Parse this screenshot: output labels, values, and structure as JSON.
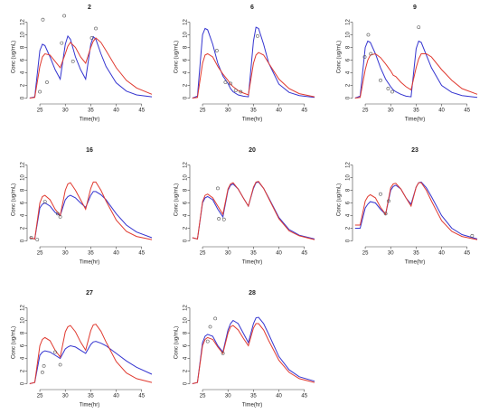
{
  "chart_data": [
    {
      "type": "line",
      "title": "2",
      "xlabel": "Time(hr)",
      "ylabel": "Conc (ug/mL)",
      "xlim": [
        22.5,
        47
      ],
      "ylim": [
        -0.5,
        13.5
      ],
      "xticks": [
        25,
        30,
        35,
        40,
        45
      ],
      "yticks": [
        0,
        2,
        4,
        6,
        8,
        10,
        12
      ],
      "x": [
        23,
        24,
        25,
        25.5,
        26,
        27,
        28,
        29,
        30,
        30.5,
        31,
        32,
        33,
        34,
        35,
        35.5,
        36,
        37,
        38,
        40,
        42,
        44,
        47
      ],
      "series": [
        {
          "color": "#3535d0",
          "values": [
            0,
            0.2,
            7.5,
            8.5,
            8.3,
            6.5,
            4.5,
            3,
            8.5,
            9.8,
            9.3,
            6.5,
            4.5,
            3,
            8.5,
            9.7,
            9.3,
            7,
            5,
            2.4,
            1.1,
            0.5,
            0.2
          ]
        },
        {
          "color": "#e03a30",
          "values": [
            0,
            0.1,
            5,
            6.5,
            7,
            6.8,
            5.8,
            4.8,
            7,
            8.2,
            8.8,
            8,
            6.5,
            5.5,
            8,
            9,
            9.5,
            8.8,
            7.5,
            4.8,
            2.8,
            1.6,
            0.6
          ]
        }
      ],
      "points": {
        "color": "#555555",
        "x": [
          25,
          25.6,
          26.4,
          29.3,
          29.8,
          31.5,
          35.2,
          36
        ],
        "values": [
          1,
          12.4,
          2.5,
          8.7,
          13,
          5.8,
          9.5,
          11
        ]
      }
    },
    {
      "type": "line",
      "title": "6",
      "xlabel": "Time(hr)",
      "ylabel": "Conc (ug/mL)",
      "xlim": [
        22.5,
        47
      ],
      "ylim": [
        -0.5,
        13.5
      ],
      "xticks": [
        25,
        30,
        35,
        40,
        45
      ],
      "yticks": [
        0,
        2,
        4,
        6,
        8,
        10,
        12
      ],
      "x": [
        23,
        24,
        25,
        25.5,
        26,
        27,
        28,
        29,
        30,
        30.5,
        31,
        32,
        33,
        34,
        35,
        35.5,
        36,
        37,
        38,
        40,
        42,
        44,
        47
      ],
      "series": [
        {
          "color": "#3535d0",
          "values": [
            0,
            0.3,
            10,
            11,
            10.8,
            8.5,
            5.5,
            3.5,
            2.3,
            1.5,
            1,
            0.5,
            0.3,
            0.2,
            9,
            11.2,
            11,
            8.5,
            5.5,
            2.2,
            0.9,
            0.4,
            0.1
          ]
        },
        {
          "color": "#e03a30",
          "values": [
            0,
            0.1,
            5.5,
            6.8,
            7,
            6.5,
            5,
            3.8,
            2.8,
            2.2,
            1.8,
            1.2,
            0.8,
            0.5,
            5.5,
            6.8,
            7.2,
            6.8,
            5.5,
            3,
            1.5,
            0.7,
            0.2
          ]
        }
      ],
      "points": {
        "color": "#555555",
        "x": [
          27.8,
          29.5,
          30.5,
          31.5,
          32.5,
          35.8
        ],
        "values": [
          7.5,
          2.5,
          2.3,
          1.2,
          1,
          9.8
        ]
      }
    },
    {
      "type": "line",
      "title": "9",
      "xlabel": "Time(hr)",
      "ylabel": "Conc (ug/mL)",
      "xlim": [
        22.5,
        47
      ],
      "ylim": [
        -0.5,
        13.5
      ],
      "xticks": [
        25,
        30,
        35,
        40,
        45
      ],
      "yticks": [
        0,
        2,
        4,
        6,
        8,
        10,
        12
      ],
      "x": [
        23,
        24,
        25,
        25.5,
        26,
        27,
        28,
        29,
        30,
        30.5,
        31,
        32,
        33,
        34,
        35,
        35.5,
        36,
        37,
        38,
        40,
        42,
        44,
        47
      ],
      "series": [
        {
          "color": "#3535d0",
          "values": [
            0,
            0.3,
            8,
            9,
            8.8,
            7,
            4.8,
            3,
            1.8,
            1.3,
            1,
            0.6,
            0.3,
            0.2,
            7.8,
            9,
            8.8,
            6.8,
            4.8,
            2,
            0.9,
            0.4,
            0.1
          ]
        },
        {
          "color": "#e03a30",
          "values": [
            0,
            0.1,
            4.5,
            6,
            6.8,
            7,
            6.4,
            5.4,
            4.3,
            3.6,
            3.4,
            2.5,
            1.8,
            1.3,
            4.8,
            6.2,
            7,
            7,
            6.5,
            4.5,
            2.8,
            1.5,
            0.6
          ]
        }
      ],
      "points": {
        "color": "#555555",
        "x": [
          24.9,
          25.6,
          26.1,
          28,
          29.5,
          30.3,
          35.5
        ],
        "values": [
          6.5,
          10,
          7,
          2.8,
          1.5,
          1,
          11.2
        ]
      }
    },
    {
      "type": "line",
      "title": "16",
      "xlabel": "Time(hr)",
      "ylabel": "Conc (ug/mL)",
      "xlim": [
        22.5,
        47
      ],
      "ylim": [
        -0.5,
        13.5
      ],
      "xticks": [
        25,
        30,
        35,
        40,
        45
      ],
      "yticks": [
        0,
        2,
        4,
        6,
        8,
        10,
        12
      ],
      "x": [
        23,
        24,
        25,
        25.5,
        26,
        27,
        28,
        29,
        30,
        30.5,
        31,
        32,
        33,
        34,
        35,
        35.5,
        36,
        37,
        38,
        40,
        42,
        44,
        47
      ],
      "series": [
        {
          "color": "#3535d0",
          "values": [
            0.5,
            0.3,
            5.2,
            5.8,
            6,
            5.5,
            4.5,
            4,
            6.5,
            7,
            7.2,
            6.8,
            6,
            5.3,
            7.2,
            7.8,
            7.8,
            7.3,
            6.5,
            4.3,
            2.5,
            1.4,
            0.5
          ]
        },
        {
          "color": "#e03a30",
          "values": [
            0.5,
            0.3,
            6,
            7,
            7.2,
            6.5,
            5,
            4,
            8,
            9,
            9.2,
            8,
            6.5,
            5,
            8.3,
            9.3,
            9.3,
            8,
            6.3,
            3.3,
            1.5,
            0.7,
            0.2
          ]
        }
      ],
      "points": {
        "color": "#555555",
        "x": [
          23.3,
          24.5,
          26,
          28.5,
          29
        ],
        "values": [
          0.5,
          0.2,
          6.2,
          4.3,
          3.8
        ]
      }
    },
    {
      "type": "line",
      "title": "20",
      "xlabel": "Time(hr)",
      "ylabel": "Conc (ug/mL)",
      "xlim": [
        22.5,
        47
      ],
      "ylim": [
        -0.5,
        13.5
      ],
      "xticks": [
        25,
        30,
        35,
        40,
        45
      ],
      "yticks": [
        0,
        2,
        4,
        6,
        8,
        10,
        12
      ],
      "x": [
        23,
        24,
        25,
        25.5,
        26,
        27,
        28,
        29,
        30,
        30.5,
        31,
        32,
        33,
        34,
        35,
        35.5,
        36,
        37,
        38,
        40,
        42,
        44,
        47
      ],
      "series": [
        {
          "color": "#3535d0",
          "values": [
            0.5,
            0.3,
            6,
            6.8,
            7,
            6.5,
            5,
            3.8,
            8,
            8.8,
            9,
            8.2,
            6.8,
            5.5,
            8.3,
            9.2,
            9.3,
            8.3,
            6.8,
            3.7,
            1.8,
            0.9,
            0.3
          ]
        },
        {
          "color": "#e03a30",
          "values": [
            0.5,
            0.3,
            6.2,
            7.2,
            7.4,
            6.8,
            5.5,
            4.2,
            8.2,
            9,
            9.2,
            8.2,
            6.8,
            5.5,
            8.5,
            9.3,
            9.4,
            8.3,
            6.7,
            3.5,
            1.6,
            0.8,
            0.2
          ]
        }
      ],
      "points": {
        "color": "#555555",
        "x": [
          28,
          28.2,
          29.2
        ],
        "values": [
          8.3,
          3.5,
          3.4
        ]
      }
    },
    {
      "type": "line",
      "title": "23",
      "xlabel": "Time(hr)",
      "ylabel": "Conc (ug/mL)",
      "xlim": [
        22.5,
        47
      ],
      "ylim": [
        -0.5,
        13.5
      ],
      "xticks": [
        25,
        30,
        35,
        40,
        45
      ],
      "yticks": [
        0,
        2,
        4,
        6,
        8,
        10,
        12
      ],
      "x": [
        23,
        24,
        25,
        25.5,
        26,
        27,
        28,
        29,
        30,
        30.5,
        31,
        32,
        33,
        34,
        35,
        35.5,
        36,
        37,
        38,
        40,
        42,
        44,
        47
      ],
      "series": [
        {
          "color": "#3535d0",
          "values": [
            2,
            2,
            5.2,
            5.8,
            6.2,
            6,
            5,
            4.2,
            8,
            8.6,
            8.8,
            8.2,
            6.8,
            5.8,
            8.5,
            9.2,
            9.3,
            8.4,
            7,
            4,
            2,
            1,
            0.3
          ]
        },
        {
          "color": "#e03a30",
          "values": [
            2.5,
            2.5,
            6.3,
            7,
            7.3,
            6.8,
            5.3,
            4.2,
            8.4,
            9,
            9.1,
            8.2,
            6.8,
            5.5,
            8.5,
            9.2,
            9.2,
            8,
            6.3,
            3.2,
            1.5,
            0.7,
            0.2
          ]
        }
      ],
      "points": {
        "color": "#555555",
        "x": [
          28,
          29,
          29.6,
          46
        ],
        "values": [
          7.4,
          4.3,
          6.3,
          0.8
        ]
      }
    },
    {
      "type": "line",
      "title": "27",
      "xlabel": "Time(hr)",
      "ylabel": "Conc (ug/mL)",
      "xlim": [
        22.5,
        47
      ],
      "ylim": [
        -0.5,
        13.5
      ],
      "xticks": [
        25,
        30,
        35,
        40,
        45
      ],
      "yticks": [
        0,
        2,
        4,
        6,
        8,
        10,
        12
      ],
      "x": [
        23,
        24,
        25,
        25.5,
        26,
        27,
        28,
        29,
        30,
        30.5,
        31,
        32,
        33,
        34,
        35,
        35.5,
        36,
        37,
        38,
        40,
        42,
        44,
        47
      ],
      "series": [
        {
          "color": "#3535d0",
          "values": [
            0,
            0.2,
            4.5,
            5,
            5.2,
            5,
            4.5,
            4,
            5.5,
            5.8,
            6,
            5.8,
            5.3,
            4.8,
            6.2,
            6.6,
            6.7,
            6.4,
            6,
            4.8,
            3.6,
            2.6,
            1.5
          ]
        },
        {
          "color": "#e03a30",
          "values": [
            0,
            0.2,
            6,
            7,
            7.3,
            6.8,
            5.3,
            4.2,
            8.2,
            9,
            9.2,
            8.2,
            6.6,
            5.3,
            8.4,
            9.3,
            9.4,
            8.3,
            6.6,
            3.5,
            1.7,
            0.8,
            0.2
          ]
        }
      ],
      "points": {
        "color": "#555555",
        "x": [
          25.5,
          25.8,
          28,
          29
        ],
        "values": [
          1.8,
          2.8,
          5,
          3
        ]
      }
    },
    {
      "type": "line",
      "title": "28",
      "xlabel": "Time(hr)",
      "ylabel": "Conc (ug/mL)",
      "xlim": [
        22.5,
        47
      ],
      "ylim": [
        -0.5,
        13.5
      ],
      "xticks": [
        25,
        30,
        35,
        40,
        45
      ],
      "yticks": [
        0,
        2,
        4,
        6,
        8,
        10,
        12
      ],
      "x": [
        23,
        24,
        25,
        25.5,
        26,
        27,
        28,
        29,
        30,
        30.5,
        31,
        32,
        33,
        34,
        35,
        35.5,
        36,
        37,
        38,
        40,
        42,
        44,
        47
      ],
      "series": [
        {
          "color": "#3535d0",
          "values": [
            0,
            0.2,
            6.5,
            7.5,
            7.8,
            7.5,
            6,
            5,
            8.5,
            9.5,
            10,
            9.5,
            8,
            6.5,
            9.5,
            10.4,
            10.5,
            9.5,
            7.8,
            4.3,
            2.2,
            1.1,
            0.4
          ]
        },
        {
          "color": "#e03a30",
          "values": [
            0,
            0.2,
            6,
            7,
            7.3,
            7,
            5.8,
            4.8,
            8,
            9,
            9.2,
            8.5,
            7.2,
            6,
            8.8,
            9.5,
            9.5,
            8.5,
            6.8,
            3.7,
            1.8,
            0.8,
            0.2
          ]
        }
      ],
      "points": {
        "color": "#555555",
        "x": [
          26,
          26.5,
          27.5,
          29
        ],
        "values": [
          6.7,
          9,
          10.3,
          4.8
        ]
      }
    }
  ]
}
